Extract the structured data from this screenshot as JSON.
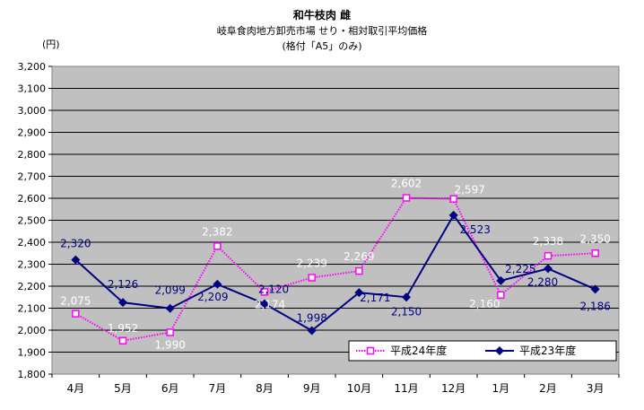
{
  "title_lines": [
    "和牛枝肉 雌",
    "岐阜食肉地方卸売市場 せり・相対取引平均価格",
    "(格付「A5」のみ)"
  ],
  "y_unit": "(円)",
  "chart_data": {
    "type": "line",
    "title": "和牛枝肉 雌 岐阜食肉地方卸売市場 せり・相対取引平均価格 (格付「A5」のみ)",
    "xlabel": "",
    "ylabel": "(円)",
    "ylim": [
      1800,
      3200
    ],
    "y_ticks": [
      "1,800",
      "1,900",
      "2,000",
      "2,100",
      "2,200",
      "2,300",
      "2,400",
      "2,500",
      "2,600",
      "2,700",
      "2,800",
      "2,900",
      "3,000",
      "3,100",
      "3,200"
    ],
    "grid": true,
    "legend_position": "bottom-right",
    "categories": [
      "4月",
      "5月",
      "6月",
      "7月",
      "8月",
      "9月",
      "10月",
      "11月",
      "12月",
      "1月",
      "2月",
      "3月"
    ],
    "series": [
      {
        "name": "平成24年度",
        "color": "#ff00ff",
        "values": [
          2075,
          1952,
          1990,
          2382,
          2174,
          2239,
          2269,
          2602,
          2597,
          2160,
          2338,
          2350
        ],
        "labels": [
          "2,075",
          "1,952",
          "1,990",
          "2,382",
          "2,174",
          "2,239",
          "2,269",
          "2,602",
          "2,597",
          "2,160",
          "2,338",
          "2,350"
        ]
      },
      {
        "name": "平成23年度",
        "color": "#000080",
        "values": [
          2320,
          2126,
          2099,
          2209,
          2120,
          1998,
          2171,
          2150,
          2523,
          2225,
          2280,
          2186
        ],
        "labels": [
          "2,320",
          "2,126",
          "2,099",
          "2,209",
          "2,120",
          "1,998",
          "2,171",
          "2,150",
          "2,523",
          "2,225",
          "2,280",
          "2,186"
        ]
      }
    ]
  }
}
